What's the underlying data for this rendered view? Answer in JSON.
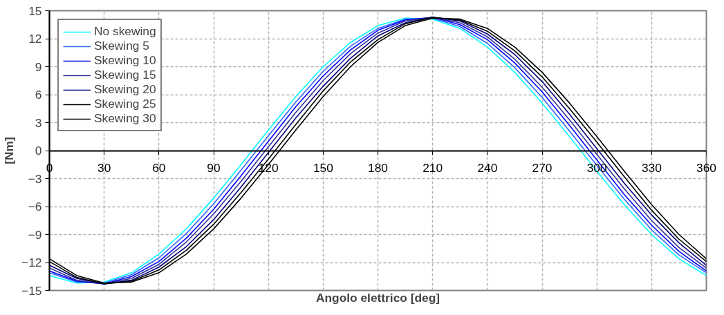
{
  "chart_data": {
    "type": "line",
    "xlabel": "Angolo elettrico [deg]",
    "ylabel": "[Nm]",
    "x": [
      0,
      15,
      30,
      45,
      60,
      75,
      90,
      105,
      120,
      135,
      150,
      165,
      180,
      195,
      210,
      225,
      240,
      255,
      270,
      285,
      300,
      315,
      330,
      345,
      360
    ],
    "xlim": [
      0,
      360
    ],
    "xticks": [
      0,
      30,
      60,
      90,
      120,
      150,
      180,
      210,
      240,
      270,
      300,
      330,
      360
    ],
    "ylim": [
      -15,
      15
    ],
    "yticks": [
      -15,
      -12,
      -9,
      -6,
      -3,
      0,
      3,
      6,
      9,
      12,
      15
    ],
    "grid": true,
    "legend": "top left",
    "marker": "none",
    "line_style": "solid",
    "series": [
      {
        "name": "No skewing",
        "color": "#00ffff",
        "values": [
          -13.4,
          -14.2,
          -14.1,
          -13.1,
          -11.1,
          -8.4,
          -5.1,
          -1.5,
          2.2,
          5.8,
          9.0,
          11.6,
          13.4,
          14.2,
          14.1,
          13.1,
          11.1,
          8.4,
          5.1,
          1.5,
          -2.2,
          -5.8,
          -9.0,
          -11.6,
          -13.4
        ]
      },
      {
        "name": "Skewing 5",
        "color": "#3366ff",
        "values": [
          -13.1,
          -14.1,
          -14.2,
          -13.3,
          -11.5,
          -8.9,
          -5.7,
          -2.1,
          1.6,
          5.2,
          8.5,
          11.2,
          13.1,
          14.1,
          14.2,
          13.3,
          11.5,
          8.9,
          5.7,
          2.1,
          -1.6,
          -5.2,
          -8.5,
          -11.2,
          -13.1
        ]
      },
      {
        "name": "Skewing 10",
        "color": "#0000ff",
        "values": [
          -12.9,
          -14.0,
          -14.3,
          -13.5,
          -11.9,
          -9.4,
          -6.3,
          -2.7,
          1.0,
          4.7,
          8.0,
          10.8,
          12.9,
          14.0,
          14.3,
          13.5,
          11.9,
          9.4,
          6.3,
          2.7,
          -1.0,
          -4.7,
          -8.0,
          -10.8,
          -12.9
        ]
      },
      {
        "name": "Skewing 15",
        "color": "#333399",
        "values": [
          -12.6,
          -13.9,
          -14.3,
          -13.7,
          -12.2,
          -9.8,
          -6.8,
          -3.3,
          0.4,
          4.1,
          7.5,
          10.4,
          12.6,
          13.9,
          14.3,
          13.7,
          12.2,
          9.8,
          6.8,
          3.3,
          -0.4,
          -4.1,
          -7.5,
          -10.4,
          -12.6
        ]
      },
      {
        "name": "Skewing 20",
        "color": "#000080",
        "values": [
          -12.3,
          -13.7,
          -14.3,
          -13.9,
          -12.5,
          -10.3,
          -7.4,
          -3.9,
          -0.2,
          3.5,
          6.9,
          9.9,
          12.3,
          13.7,
          14.3,
          13.9,
          12.5,
          10.3,
          7.4,
          3.9,
          0.2,
          -3.5,
          -6.9,
          -9.9,
          -12.3
        ]
      },
      {
        "name": "Skewing 25",
        "color": "#000000",
        "values": [
          -11.9,
          -13.6,
          -14.3,
          -14.0,
          -12.8,
          -10.7,
          -7.9,
          -4.5,
          -0.9,
          2.8,
          6.4,
          9.5,
          11.9,
          13.6,
          14.3,
          14.0,
          12.8,
          10.7,
          7.9,
          4.5,
          0.9,
          -2.8,
          -6.4,
          -9.5,
          -11.9
        ]
      },
      {
        "name": "Skewing 30",
        "color": "#000000",
        "values": [
          -11.6,
          -13.4,
          -14.2,
          -14.1,
          -13.1,
          -11.1,
          -8.4,
          -5.1,
          -1.5,
          2.2,
          5.8,
          9.0,
          11.6,
          13.4,
          14.2,
          14.1,
          13.1,
          11.1,
          8.4,
          5.1,
          1.5,
          -2.2,
          -5.8,
          -9.0,
          -11.6
        ]
      }
    ]
  }
}
